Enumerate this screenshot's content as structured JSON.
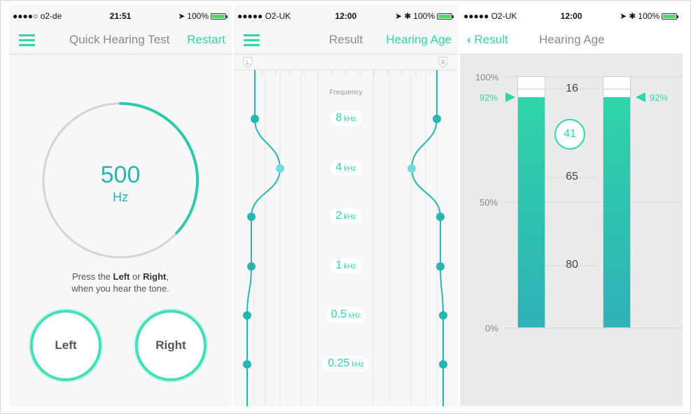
{
  "screen1": {
    "status": {
      "carrier": "●●●●○ o2-de",
      "time": "21:51",
      "battery": "100%"
    },
    "nav": {
      "title": "Quick Hearing Test",
      "restart": "Restart"
    },
    "dial": {
      "value": "500",
      "unit": "Hz",
      "progress": 0.37
    },
    "instructions": {
      "pre": "Press the ",
      "left": "Left",
      "mid": " or ",
      "right": "Right",
      "post": ",",
      "line2": "when you hear the tone."
    },
    "buttons": {
      "left": "Left",
      "right": "Right"
    }
  },
  "screen2": {
    "status": {
      "carrier": "●●●●● O2-UK",
      "time": "12:00",
      "battery": "100%"
    },
    "nav": {
      "result": "Result",
      "hearing_age": "Hearing Age"
    },
    "channels": {
      "left": "L",
      "right": "R"
    },
    "frequency_label": "Frequency",
    "frequencies": [
      {
        "value": "8",
        "unit": "kHz"
      },
      {
        "value": "4",
        "unit": "kHz"
      },
      {
        "value": "2",
        "unit": "kHz"
      },
      {
        "value": "1",
        "unit": "kHz"
      },
      {
        "value": "0.5",
        "unit": "kHz"
      },
      {
        "value": "0.25",
        "unit": "kHz"
      }
    ]
  },
  "screen3": {
    "status": {
      "carrier": "●●●●● O2-UK",
      "time": "12:00",
      "battery": "100%"
    },
    "nav": {
      "back": "Result",
      "title": "Hearing Age"
    },
    "axis": {
      "top": "100%",
      "mid": "50%",
      "bottom": "0%"
    },
    "ages": [
      "16",
      "65",
      "80"
    ],
    "hearing_age": "41",
    "left_score": "92%",
    "right_score": "92%",
    "left_fraction": 0.92,
    "right_fraction": 0.92
  },
  "colors": {
    "accent": "#2fd4a8",
    "teal": "#27b6b1",
    "grid": "#dcdcdc"
  }
}
